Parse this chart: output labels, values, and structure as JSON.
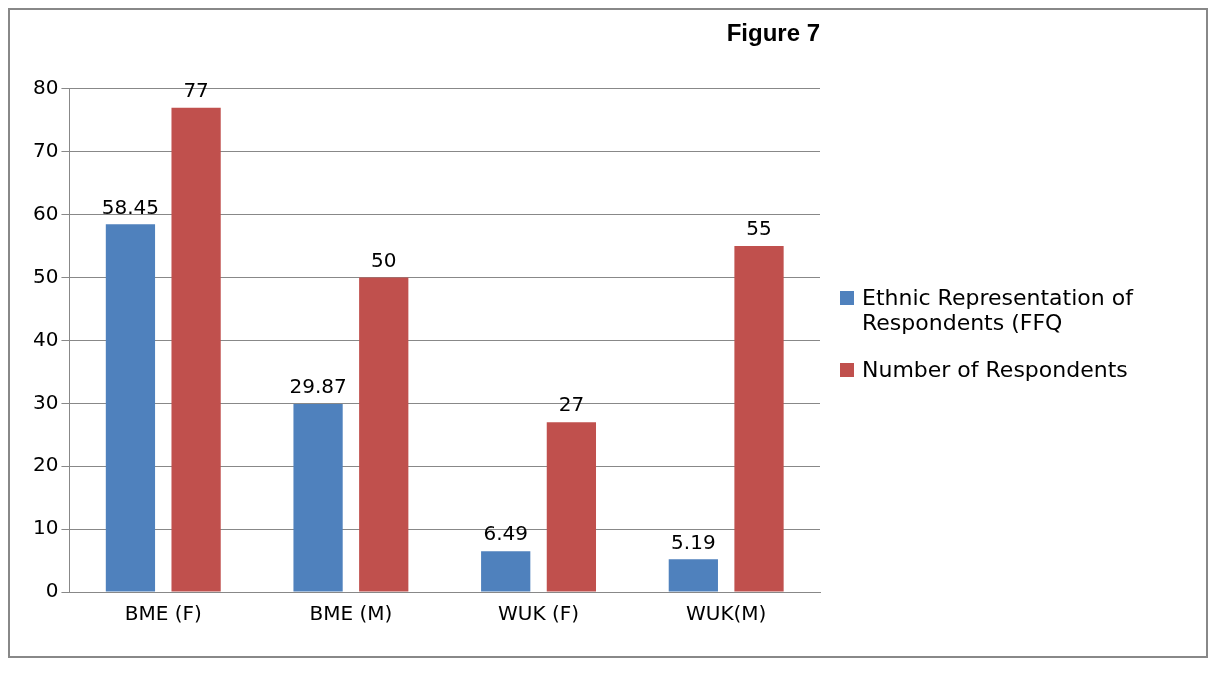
{
  "chart_data": {
    "type": "bar",
    "title": "Figure 7",
    "categories": [
      "BME (F)",
      "BME (M)",
      "WUK (F)",
      "WUK(M)"
    ],
    "series": [
      {
        "name": "Ethnic Representation of Respondents (FFQ",
        "color": "#4f81bd",
        "values": [
          58.45,
          29.87,
          6.49,
          5.19
        ]
      },
      {
        "name": "Number of Respondents",
        "color": "#c0504d",
        "values": [
          77,
          50,
          27,
          55
        ]
      }
    ],
    "ylim": [
      0,
      80
    ],
    "yticks": [
      0,
      10,
      20,
      30,
      40,
      50,
      60,
      70,
      80
    ],
    "grid": "y",
    "legend": "right",
    "data_labels": true
  }
}
